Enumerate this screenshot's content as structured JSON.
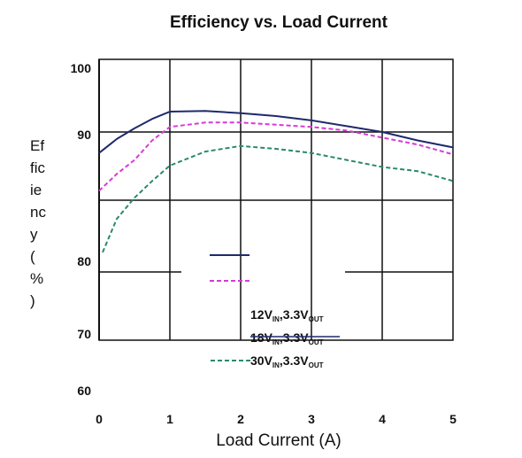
{
  "chart_data": {
    "type": "line",
    "title": "Efficiency vs. Load Current",
    "xlabel": "Load Current (A)",
    "ylabel": "Efficiency (%)",
    "xlim": [
      0,
      5
    ],
    "x_ticks": [
      "0",
      "1",
      "2",
      "3",
      "4",
      "5"
    ],
    "y_ticks": [
      "100",
      "90",
      "80",
      "70",
      "60"
    ],
    "grid": true,
    "legend_position": "bottom-center",
    "series": [
      {
        "name": "12VIN,3.3VOUT",
        "label_main": "12V",
        "label_sub1": "IN",
        "label_mid": ",3.3V",
        "label_sub2": "OUT",
        "color": "#1f2a6b",
        "style": "solid",
        "x": [
          0,
          0.25,
          0.5,
          0.75,
          1.0,
          1.5,
          2.0,
          2.5,
          3.0,
          3.5,
          4.0,
          4.5,
          5.0
        ],
        "y": [
          88.5,
          89.5,
          90.5,
          91.8,
          92.8,
          92.9,
          92.6,
          92.2,
          91.6,
          90.8,
          90.0,
          89.4,
          88.9
        ]
      },
      {
        "name": "18VIN,3.3VOUT",
        "label_main": "18V",
        "label_sub1": "IN",
        "label_mid": ",3.3V",
        "label_sub2": "OUT",
        "color": "#d63bd6",
        "style": "dashed",
        "x": [
          0,
          0.25,
          0.5,
          0.75,
          1.0,
          1.5,
          2.0,
          2.5,
          3.0,
          3.5,
          4.0,
          4.5,
          5.0
        ],
        "y": [
          85.8,
          87.0,
          88.0,
          89.4,
          90.7,
          91.3,
          91.3,
          91.0,
          90.7,
          90.2,
          89.6,
          89.1,
          88.4
        ]
      },
      {
        "name": "30VIN,3.3VOUT",
        "label_main": "30V",
        "label_sub1": "IN",
        "label_mid": ",3.3V",
        "label_sub2": "OUT",
        "color": "#2a8a6a",
        "style": "dashed",
        "x": [
          0.05,
          0.25,
          0.5,
          0.75,
          1.0,
          1.5,
          2.0,
          2.5,
          3.0,
          3.5,
          4.0,
          4.5,
          5.0
        ],
        "y": [
          81.4,
          83.8,
          85.3,
          86.5,
          87.6,
          88.6,
          89.0,
          88.8,
          88.5,
          88.0,
          87.5,
          87.2,
          86.5
        ]
      }
    ]
  }
}
